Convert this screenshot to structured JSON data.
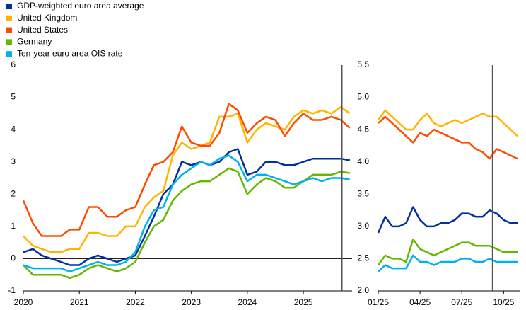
{
  "chart_data": [
    {
      "type": "line",
      "x": [
        2020,
        2020.17,
        2020.33,
        2020.5,
        2020.67,
        2020.83,
        2021,
        2021.17,
        2021.33,
        2021.5,
        2021.67,
        2021.83,
        2022,
        2022.17,
        2022.33,
        2022.5,
        2022.67,
        2022.83,
        2023,
        2023.17,
        2023.33,
        2023.5,
        2023.67,
        2023.83,
        2024,
        2024.17,
        2024.33,
        2024.5,
        2024.67,
        2024.83,
        2025,
        2025.17,
        2025.33,
        2025.5,
        2025.67,
        2025.83
      ],
      "series": [
        {
          "name": "GDP-weighted euro area average",
          "color": "#003299",
          "values": [
            0.2,
            0.3,
            0.1,
            0.0,
            -0.1,
            -0.2,
            -0.2,
            0.0,
            0.1,
            0.0,
            -0.1,
            0.0,
            0.1,
            0.7,
            1.3,
            2.0,
            2.3,
            3.0,
            2.9,
            3.0,
            2.9,
            3.0,
            3.3,
            3.4,
            2.6,
            2.7,
            3.0,
            3.0,
            2.9,
            2.9,
            3.0,
            3.1,
            3.1,
            3.1,
            3.1,
            3.05
          ]
        },
        {
          "name": "United Kingdom",
          "color": "#ffb400",
          "values": [
            0.7,
            0.4,
            0.3,
            0.2,
            0.2,
            0.3,
            0.3,
            0.8,
            0.8,
            0.7,
            0.7,
            1.0,
            1.0,
            1.6,
            1.9,
            2.1,
            3.2,
            3.6,
            3.4,
            3.5,
            3.6,
            4.4,
            4.4,
            4.5,
            3.6,
            4.0,
            4.2,
            4.1,
            4.0,
            4.4,
            4.6,
            4.5,
            4.6,
            4.5,
            4.7,
            4.5
          ]
        },
        {
          "name": "United States",
          "color": "#ff4b00",
          "values": [
            1.8,
            1.1,
            0.7,
            0.7,
            0.7,
            0.9,
            0.9,
            1.6,
            1.6,
            1.3,
            1.3,
            1.5,
            1.6,
            2.3,
            2.9,
            3.0,
            3.3,
            4.1,
            3.6,
            3.5,
            3.5,
            3.9,
            4.8,
            4.6,
            3.9,
            4.2,
            4.4,
            4.3,
            3.8,
            4.2,
            4.5,
            4.3,
            4.3,
            4.4,
            4.3,
            4.05
          ]
        },
        {
          "name": "Germany",
          "color": "#65b800",
          "values": [
            -0.2,
            -0.5,
            -0.5,
            -0.5,
            -0.5,
            -0.6,
            -0.5,
            -0.3,
            -0.2,
            -0.3,
            -0.4,
            -0.3,
            -0.1,
            0.5,
            1.0,
            1.2,
            1.8,
            2.1,
            2.3,
            2.4,
            2.4,
            2.6,
            2.8,
            2.7,
            2.0,
            2.3,
            2.5,
            2.4,
            2.2,
            2.2,
            2.4,
            2.6,
            2.6,
            2.6,
            2.7,
            2.65
          ]
        },
        {
          "name": "Ten-year euro area OIS rate",
          "color": "#00b1ea",
          "values": [
            -0.2,
            -0.3,
            -0.3,
            -0.3,
            -0.3,
            -0.4,
            -0.3,
            -0.2,
            -0.1,
            -0.2,
            -0.2,
            -0.1,
            0.2,
            1.0,
            1.5,
            1.6,
            2.3,
            2.6,
            2.8,
            3.0,
            2.9,
            3.1,
            3.2,
            3.0,
            2.4,
            2.6,
            2.6,
            2.5,
            2.4,
            2.3,
            2.4,
            2.5,
            2.4,
            2.5,
            2.5,
            2.45
          ]
        }
      ],
      "xlim": [
        2020,
        2025.87
      ],
      "xticks": [
        2020,
        2021,
        2022,
        2023,
        2024,
        2025
      ],
      "ylim": [
        -1,
        6
      ],
      "yticks": [
        -1,
        0,
        1,
        2,
        3,
        4,
        5,
        6
      ],
      "zero_line": true,
      "vline": 2025.69
    },
    {
      "type": "line",
      "x": [
        1,
        1.5,
        2,
        2.5,
        3,
        3.5,
        4,
        4.5,
        5,
        5.5,
        6,
        6.5,
        7,
        7.5,
        8,
        8.5,
        9,
        9.5,
        10,
        10.5,
        11
      ],
      "series": [
        {
          "color": "#003299",
          "values": [
            2.9,
            3.15,
            3.0,
            3.0,
            3.05,
            3.3,
            3.1,
            3.0,
            3.0,
            3.05,
            3.05,
            3.1,
            3.2,
            3.2,
            3.15,
            3.15,
            3.25,
            3.2,
            3.1,
            3.05,
            3.05
          ]
        },
        {
          "color": "#ffb400",
          "values": [
            4.65,
            4.8,
            4.7,
            4.6,
            4.5,
            4.5,
            4.65,
            4.75,
            4.6,
            4.55,
            4.6,
            4.65,
            4.6,
            4.65,
            4.7,
            4.75,
            4.7,
            4.7,
            4.6,
            4.5,
            4.4
          ]
        },
        {
          "color": "#ff4b00",
          "values": [
            4.6,
            4.7,
            4.6,
            4.5,
            4.4,
            4.3,
            4.45,
            4.4,
            4.5,
            4.45,
            4.4,
            4.35,
            4.3,
            4.3,
            4.2,
            4.15,
            4.05,
            4.2,
            4.15,
            4.1,
            4.05
          ]
        },
        {
          "color": "#65b800",
          "values": [
            2.4,
            2.55,
            2.5,
            2.5,
            2.45,
            2.8,
            2.65,
            2.6,
            2.55,
            2.6,
            2.65,
            2.7,
            2.75,
            2.75,
            2.7,
            2.7,
            2.7,
            2.65,
            2.6,
            2.6,
            2.6
          ]
        },
        {
          "color": "#00b1ea",
          "values": [
            2.3,
            2.4,
            2.35,
            2.35,
            2.35,
            2.55,
            2.45,
            2.45,
            2.4,
            2.45,
            2.45,
            2.45,
            2.5,
            2.5,
            2.45,
            2.45,
            2.5,
            2.45,
            2.45,
            2.45,
            2.45
          ]
        }
      ],
      "xlim": [
        1,
        11.15
      ],
      "xticks": [
        {
          "value": 1,
          "label": "01/25"
        },
        {
          "value": 4,
          "label": "04/25"
        },
        {
          "value": 7,
          "label": "07/25"
        },
        {
          "value": 10,
          "label": "10/25"
        }
      ],
      "ylim": [
        2,
        5.5
      ],
      "yticks": [
        {
          "value": 2,
          "label": "2.0"
        },
        2.5,
        {
          "value": 3,
          "label": "3.0"
        },
        3.5,
        {
          "value": 4,
          "label": "4.0"
        },
        4.5,
        {
          "value": 5,
          "label": "5.0"
        },
        5.5
      ],
      "vline": 9.2
    }
  ]
}
